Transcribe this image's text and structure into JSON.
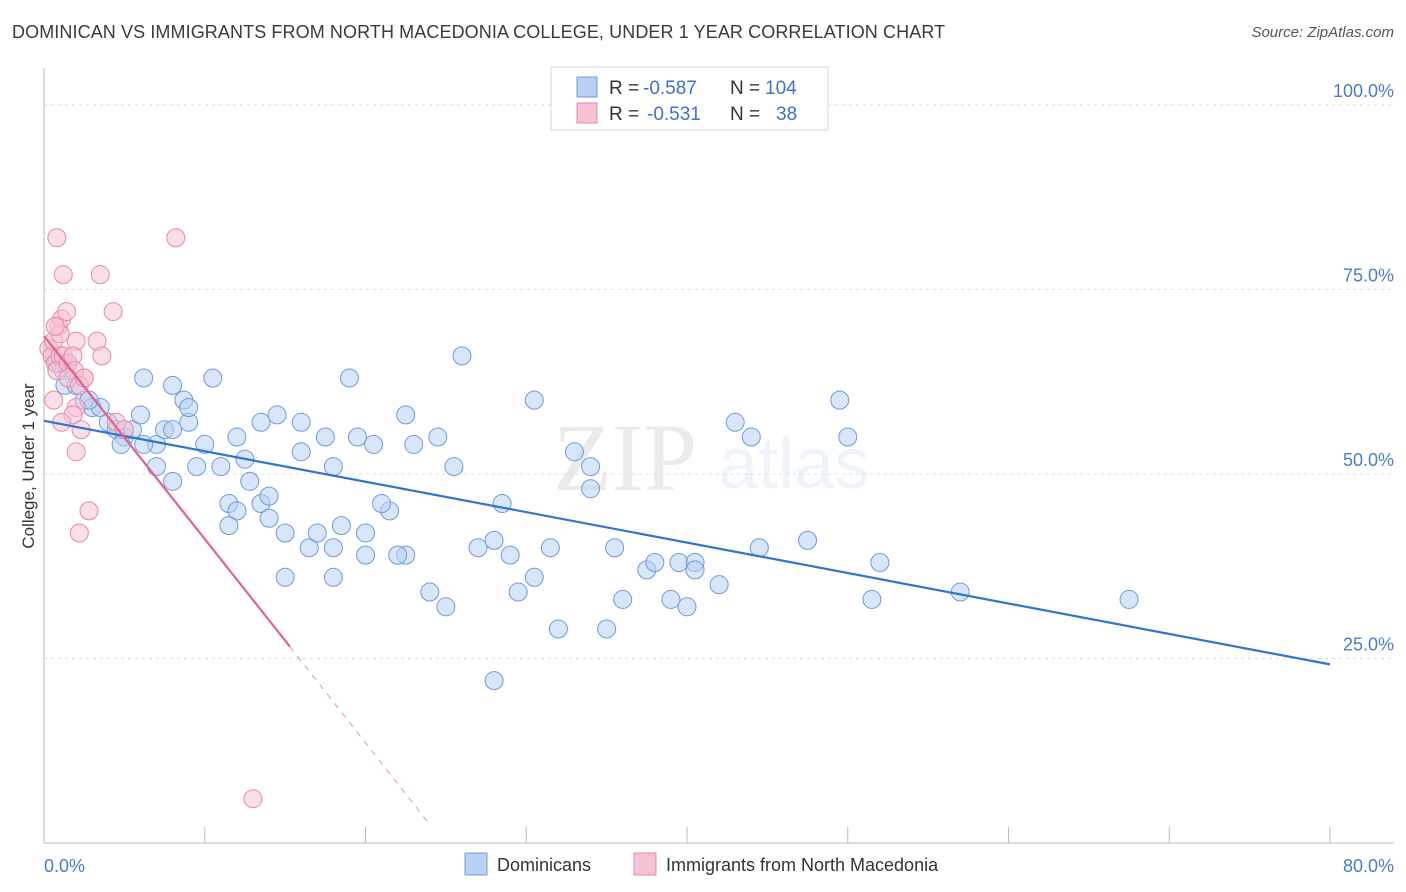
{
  "chart_data": {
    "type": "scatter",
    "title": "DOMINICAN VS IMMIGRANTS FROM NORTH MACEDONIA COLLEGE, UNDER 1 YEAR CORRELATION CHART",
    "source": "Source: ZipAtlas.com",
    "watermark": {
      "zip": "ZIP",
      "atlas": "atlas"
    },
    "ylabel": "College, Under 1 year",
    "xlim": [
      0,
      80
    ],
    "ylim": [
      0,
      105
    ],
    "x_tick_labels": [
      {
        "value": 0,
        "label": "0.0%"
      },
      {
        "value": 80,
        "label": "80.0%"
      }
    ],
    "y_tick_labels": [
      {
        "value": 25,
        "label": "25.0%"
      },
      {
        "value": 50,
        "label": "50.0%"
      },
      {
        "value": 75,
        "label": "75.0%"
      },
      {
        "value": 100,
        "label": "100.0%"
      }
    ],
    "legend": {
      "r_label": "R =",
      "n_label": "N =",
      "entries": [
        {
          "r": "-0.587",
          "n": "104"
        },
        {
          "r": "-0.531",
          "n": "38"
        }
      ]
    },
    "series": [
      {
        "name": "Dominicans",
        "color": "#6b9be0",
        "fill": "#b9d0f3",
        "trend": {
          "x0": 0,
          "y0": 57.2,
          "x1": 80,
          "y1": 24.2,
          "color": "#2f74d0"
        },
        "points": [
          [
            0.5,
            66
          ],
          [
            0.8,
            65
          ],
          [
            1.0,
            65
          ],
          [
            1.2,
            64
          ],
          [
            1.5,
            65
          ],
          [
            1.3,
            62
          ],
          [
            2.0,
            62
          ],
          [
            2.5,
            60
          ],
          [
            3.0,
            59
          ],
          [
            3.5,
            59
          ],
          [
            2.8,
            60
          ],
          [
            4.0,
            57
          ],
          [
            4.5,
            56
          ],
          [
            5.0,
            55
          ],
          [
            5.5,
            56
          ],
          [
            6.0,
            58
          ],
          [
            7.0,
            54
          ],
          [
            7.5,
            56
          ],
          [
            8.0,
            56
          ],
          [
            4.8,
            54
          ],
          [
            6.2,
            54
          ],
          [
            9.0,
            57
          ],
          [
            10.0,
            54
          ],
          [
            12.0,
            55
          ],
          [
            14.5,
            58
          ],
          [
            16.0,
            57
          ],
          [
            13.5,
            57
          ],
          [
            17.5,
            55
          ],
          [
            19.5,
            55
          ],
          [
            22.5,
            58
          ],
          [
            24.5,
            55
          ],
          [
            23.0,
            54
          ],
          [
            20.5,
            54
          ],
          [
            18.0,
            51
          ],
          [
            16.0,
            53
          ],
          [
            12.5,
            52
          ],
          [
            11.0,
            51
          ],
          [
            12.8,
            49
          ],
          [
            9.5,
            51
          ],
          [
            8.0,
            49
          ],
          [
            7.0,
            51
          ],
          [
            6.2,
            63
          ],
          [
            8.0,
            62
          ],
          [
            8.7,
            60
          ],
          [
            9.0,
            59
          ],
          [
            10.5,
            63
          ],
          [
            19.0,
            63
          ],
          [
            25.5,
            51
          ],
          [
            26.0,
            66
          ],
          [
            30.5,
            60
          ],
          [
            28.5,
            46
          ],
          [
            11.5,
            46
          ],
          [
            12.0,
            45
          ],
          [
            11.5,
            43
          ],
          [
            13.5,
            46
          ],
          [
            14.0,
            47
          ],
          [
            14.0,
            44
          ],
          [
            15.0,
            42
          ],
          [
            16.5,
            40
          ],
          [
            17.0,
            42
          ],
          [
            18.0,
            40
          ],
          [
            18.0,
            36
          ],
          [
            18.5,
            43
          ],
          [
            20.0,
            39
          ],
          [
            20.0,
            42
          ],
          [
            21.5,
            45
          ],
          [
            21.0,
            46
          ],
          [
            22.5,
            39
          ],
          [
            22.0,
            39
          ],
          [
            24.0,
            34
          ],
          [
            25.0,
            32
          ],
          [
            27.0,
            40
          ],
          [
            28.0,
            41
          ],
          [
            29.0,
            39
          ],
          [
            29.5,
            34
          ],
          [
            30.5,
            36
          ],
          [
            31.5,
            40
          ],
          [
            32.0,
            29
          ],
          [
            33.0,
            53
          ],
          [
            34.0,
            51
          ],
          [
            34.0,
            48
          ],
          [
            35.0,
            29
          ],
          [
            35.5,
            40
          ],
          [
            36.0,
            33
          ],
          [
            37.5,
            37
          ],
          [
            38.0,
            38
          ],
          [
            39.0,
            33
          ],
          [
            39.5,
            38
          ],
          [
            40.0,
            32
          ],
          [
            40.5,
            38
          ],
          [
            40.5,
            37
          ],
          [
            42.0,
            35
          ],
          [
            43.0,
            57
          ],
          [
            44.0,
            55
          ],
          [
            44.5,
            40
          ],
          [
            47.5,
            41
          ],
          [
            49.5,
            60
          ],
          [
            50.0,
            55
          ],
          [
            51.5,
            33
          ],
          [
            52.0,
            38
          ],
          [
            57.0,
            34
          ],
          [
            67.5,
            33
          ],
          [
            28.0,
            22
          ],
          [
            15.0,
            36
          ]
        ]
      },
      {
        "name": "Immigrants from North Macedonia",
        "color": "#e688ab",
        "fill": "#f6c2d5",
        "trend": {
          "x0": 0,
          "y0": 68.7,
          "x1": 15.3,
          "y1": 26.6,
          "dash_x1": 24.0,
          "dash_y1": 2.5,
          "color": "#e0628f"
        },
        "points": [
          [
            0.3,
            67
          ],
          [
            0.5,
            66
          ],
          [
            0.7,
            65
          ],
          [
            1.0,
            66
          ],
          [
            1.2,
            66
          ],
          [
            0.8,
            64
          ],
          [
            1.5,
            65
          ],
          [
            0.6,
            68
          ],
          [
            0.9,
            70
          ],
          [
            1.1,
            71
          ],
          [
            1.4,
            72
          ],
          [
            1.0,
            69
          ],
          [
            0.7,
            70
          ],
          [
            1.2,
            77
          ],
          [
            0.8,
            82
          ],
          [
            3.5,
            77
          ],
          [
            4.3,
            72
          ],
          [
            3.3,
            68
          ],
          [
            2.0,
            68
          ],
          [
            1.8,
            66
          ],
          [
            3.6,
            66
          ],
          [
            2.5,
            63
          ],
          [
            1.9,
            64
          ],
          [
            1.5,
            63
          ],
          [
            2.2,
            62
          ],
          [
            2.0,
            59
          ],
          [
            1.8,
            58
          ],
          [
            0.6,
            60
          ],
          [
            1.1,
            57
          ],
          [
            4.5,
            57
          ],
          [
            5.0,
            56
          ],
          [
            2.3,
            56
          ],
          [
            2.0,
            53
          ],
          [
            2.8,
            45
          ],
          [
            2.2,
            42
          ],
          [
            8.2,
            82
          ],
          [
            13.0,
            6
          ],
          [
            2.5,
            63
          ]
        ]
      }
    ]
  }
}
